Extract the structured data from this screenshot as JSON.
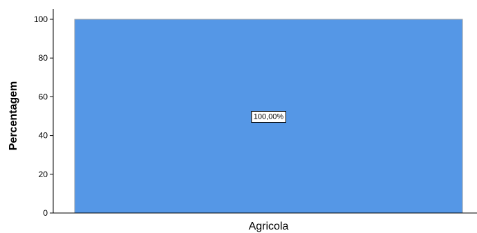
{
  "chart_data": {
    "type": "bar",
    "categories": [
      "Agricola"
    ],
    "values": [
      100
    ],
    "data_labels": [
      "100,00%"
    ],
    "ylabel": "Percentagem",
    "xlabel": "",
    "ylim": [
      0,
      100
    ],
    "yticks": [
      0,
      20,
      40,
      60,
      80,
      100
    ],
    "grid": false,
    "legend": "none",
    "bar_color": "#5597e6",
    "bar_edge_color": "#9aa0a6"
  }
}
